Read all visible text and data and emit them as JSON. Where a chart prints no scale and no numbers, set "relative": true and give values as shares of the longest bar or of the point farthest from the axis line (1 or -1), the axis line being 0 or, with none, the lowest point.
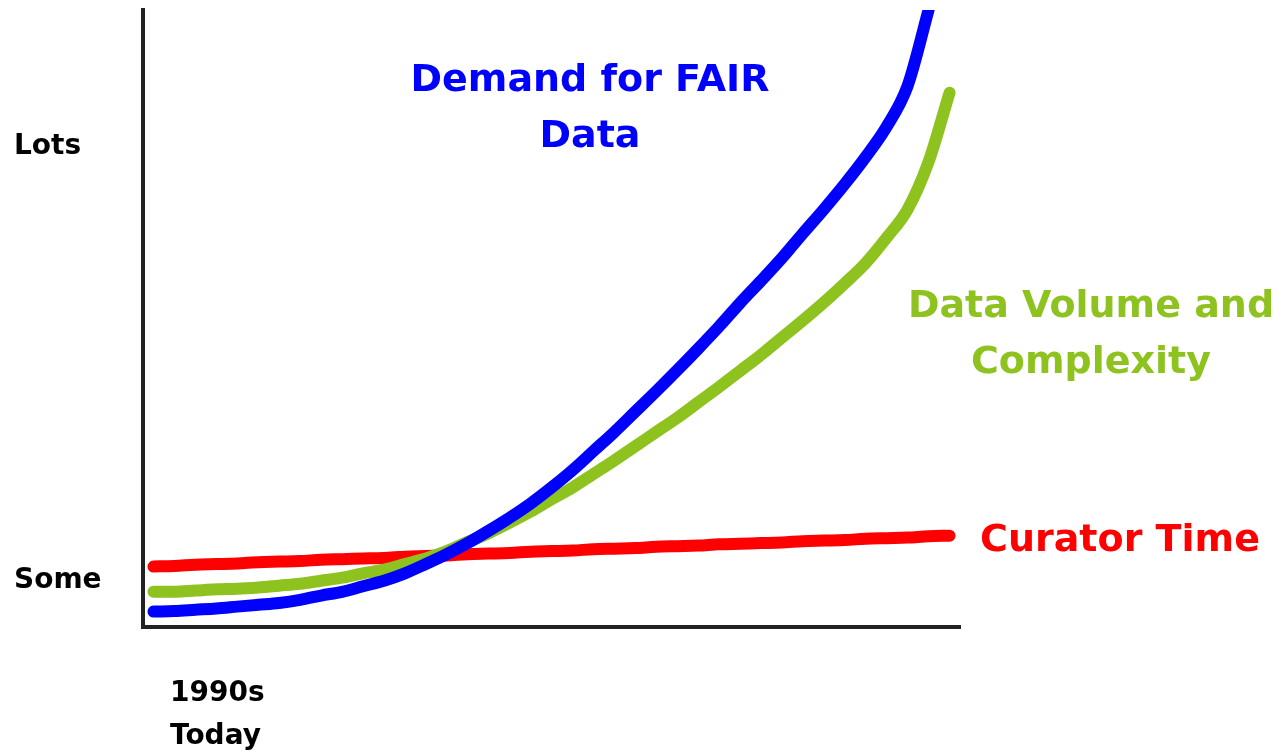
{
  "chart_data": {
    "type": "line",
    "relative": true,
    "categories": [
      null,
      null,
      null,
      null,
      null,
      null,
      null,
      null,
      null,
      null,
      null,
      null,
      null,
      null,
      null,
      null,
      null,
      null,
      null,
      null,
      null,
      null,
      null,
      null,
      null,
      null,
      null,
      null,
      null,
      null,
      null,
      null,
      null,
      null,
      null,
      null,
      null,
      null,
      null
    ],
    "series": [
      {
        "name": "Demand for FAIR Data",
        "color": "#0000ff",
        "values": [
          0.025,
          0.026,
          0.028,
          0.03,
          0.033,
          0.036,
          0.039,
          0.044,
          0.051,
          0.057,
          0.066,
          0.075,
          0.087,
          0.102,
          0.118,
          0.136,
          0.156,
          0.177,
          0.2,
          0.226,
          0.254,
          0.285,
          0.316,
          0.349,
          0.382,
          0.416,
          0.451,
          0.487,
          0.525,
          0.561,
          0.598,
          0.638,
          0.677,
          0.718,
          0.762,
          0.811,
          0.877,
          1,
          null
        ]
      },
      {
        "name": "Data Volume and Complexity",
        "color": "#8dc21f",
        "values": [
          0.057,
          0.057,
          0.059,
          0.061,
          0.062,
          0.064,
          0.067,
          0.07,
          0.075,
          0.08,
          0.087,
          0.093,
          0.102,
          0.111,
          0.123,
          0.138,
          0.152,
          0.169,
          0.187,
          0.207,
          0.226,
          0.248,
          0.27,
          0.293,
          0.316,
          0.339,
          0.364,
          0.389,
          0.415,
          0.441,
          0.469,
          0.497,
          0.526,
          0.557,
          0.59,
          0.631,
          0.677,
          0.754,
          0.866
        ]
      },
      {
        "name": "Curator Time",
        "color": "#ff0000",
        "values": [
          0.098,
          0.099,
          0.101,
          0.102,
          0.103,
          0.105,
          0.106,
          0.107,
          0.109,
          0.11,
          0.111,
          0.112,
          0.114,
          0.115,
          0.116,
          0.118,
          0.119,
          0.12,
          0.122,
          0.123,
          0.124,
          0.126,
          0.127,
          0.128,
          0.13,
          0.131,
          0.132,
          0.134,
          0.135,
          0.136,
          0.137,
          0.139,
          0.14,
          0.141,
          0.143,
          0.144,
          0.145,
          0.147,
          0.148
        ]
      }
    ],
    "annotations": [
      "Lots",
      "Some",
      "1990s",
      "Today"
    ],
    "legend": false,
    "grid": false,
    "marker": "none",
    "line_style": "solid"
  }
}
